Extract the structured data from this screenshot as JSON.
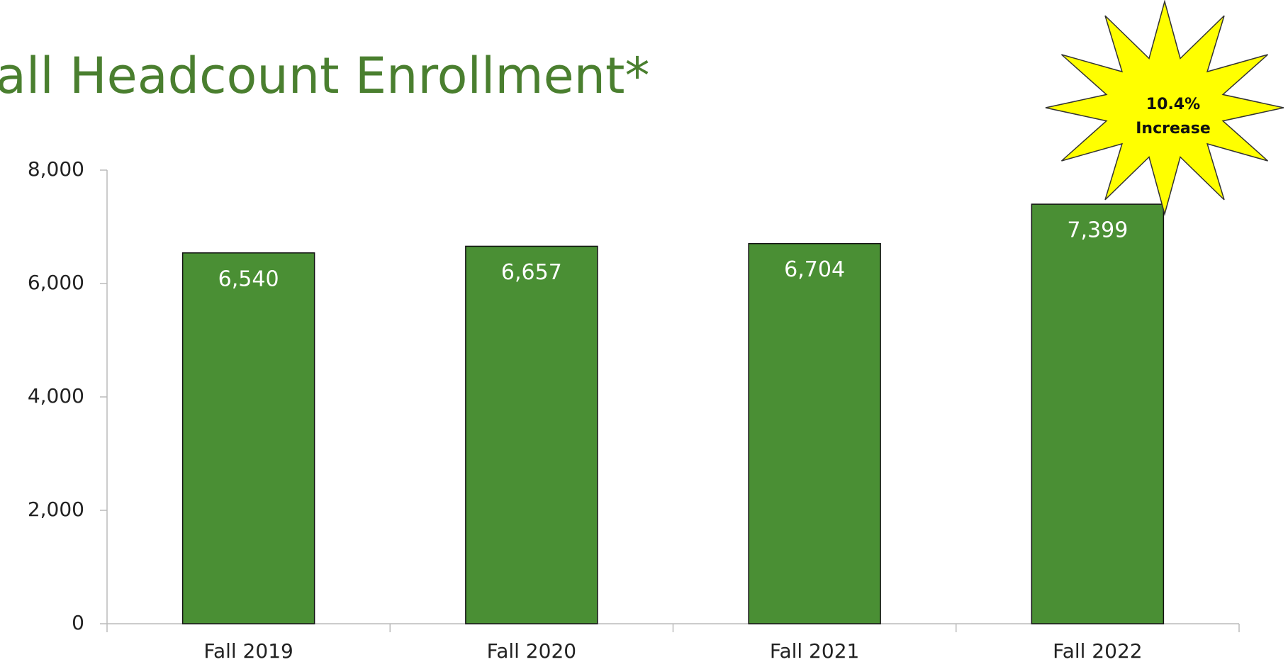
{
  "chart_data": {
    "type": "bar",
    "title": "all Headcount Enrollment*",
    "categories": [
      "Fall 2019",
      "Fall 2020",
      "Fall 2021",
      "Fall 2022"
    ],
    "values": [
      6540,
      6657,
      6704,
      7399
    ],
    "value_labels": [
      "6,540",
      "6,657",
      "6,704",
      "7,399"
    ],
    "color": "#4a8f34",
    "ylim": [
      0,
      8000
    ],
    "yticks": [
      0,
      {
        "value": 2000,
        "label": "2,000"
      },
      {
        "value": 4000,
        "label": "4,000"
      },
      {
        "value": 6000,
        "label": "6,000"
      },
      {
        "value": 8000,
        "label": "8,000"
      }
    ],
    "grid": false,
    "annotation": [
      "10.4%",
      "Increase"
    ]
  }
}
